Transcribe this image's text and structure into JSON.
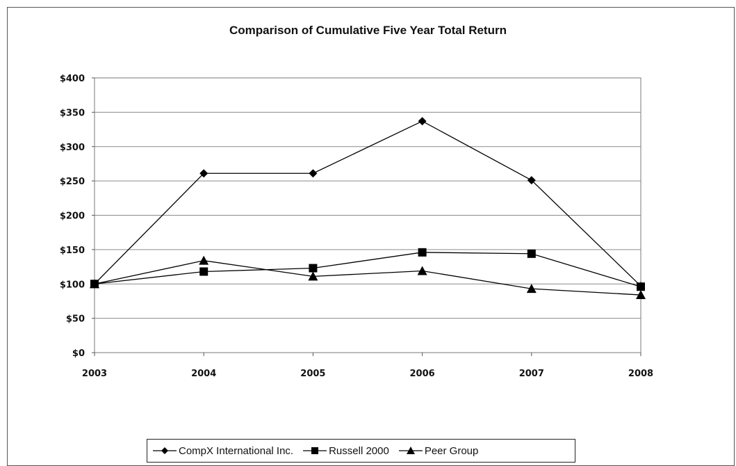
{
  "chart_data": {
    "type": "line",
    "title": "Comparison of Cumulative Five Year Total Return",
    "xlabel": "",
    "ylabel": "",
    "x": [
      "2003",
      "2004",
      "2005",
      "2006",
      "2007",
      "2008"
    ],
    "ylim": [
      0,
      400
    ],
    "yticks": [
      "$0",
      "$50",
      "$100",
      "$150",
      "$200",
      "$250",
      "$300",
      "$350",
      "$400"
    ],
    "grid": true,
    "legend_position": "bottom",
    "series": [
      {
        "name": "CompX International Inc.",
        "marker": "diamond",
        "color": "#000000",
        "values": [
          100,
          261,
          261,
          337,
          251,
          97
        ]
      },
      {
        "name": "Russell 2000",
        "marker": "square",
        "color": "#000000",
        "values": [
          100,
          118,
          123,
          146,
          144,
          96
        ]
      },
      {
        "name": "Peer Group",
        "marker": "triangle",
        "color": "#000000",
        "values": [
          100,
          134,
          111,
          119,
          93,
          84
        ]
      }
    ]
  }
}
